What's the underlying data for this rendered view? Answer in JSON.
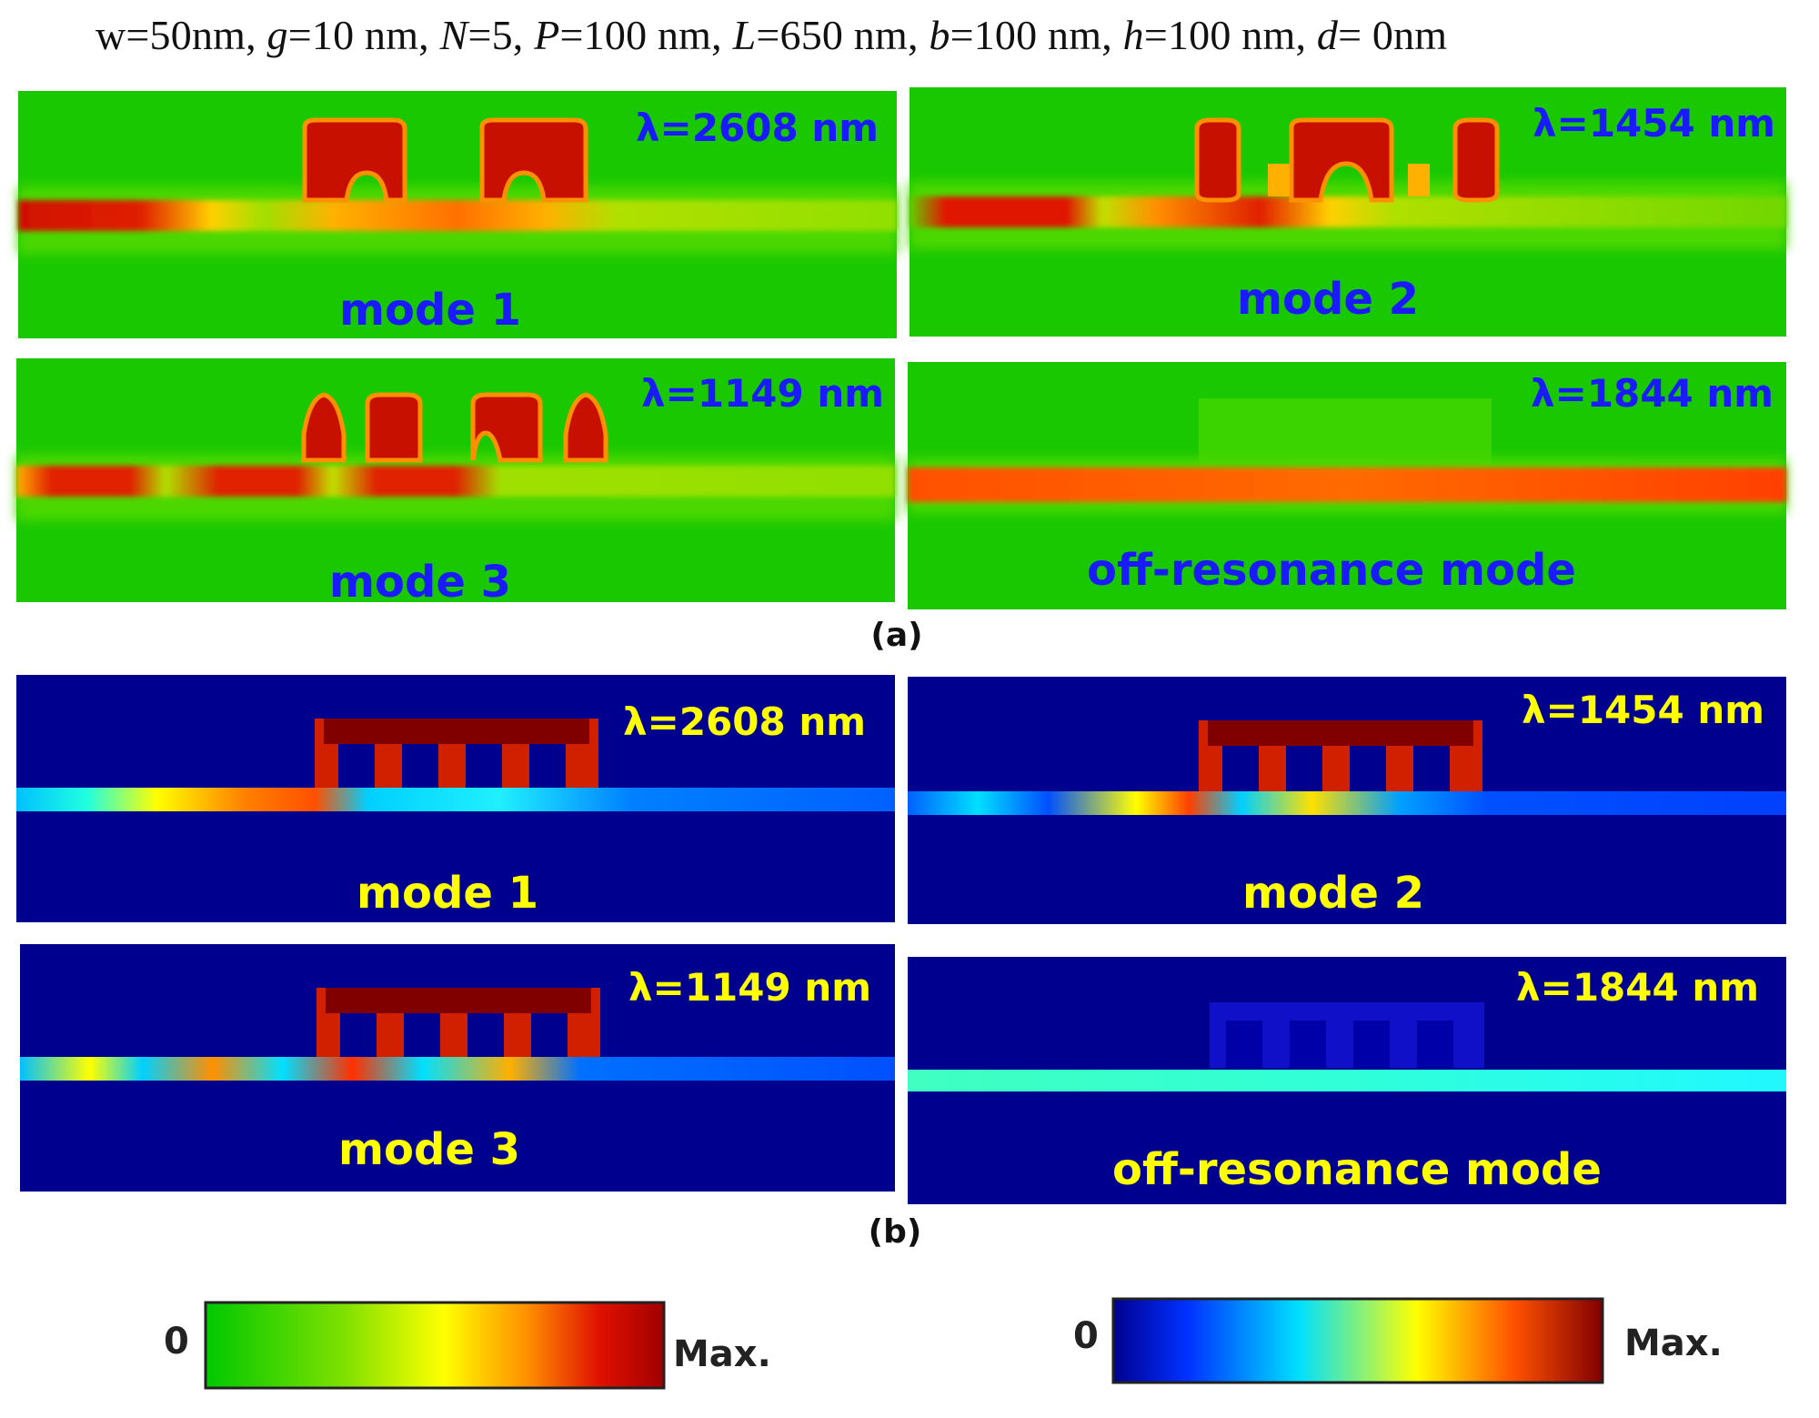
{
  "header": {
    "parts": [
      {
        "t": "w=50nm, ",
        "i": false
      },
      {
        "t": "g",
        "i": true
      },
      {
        "t": "=10 nm, ",
        "i": false
      },
      {
        "t": "N",
        "i": true
      },
      {
        "t": "=5, ",
        "i": false
      },
      {
        "t": "P",
        "i": true
      },
      {
        "t": "=100 nm, ",
        "i": false
      },
      {
        "t": "L",
        "i": true
      },
      {
        "t": "=650 nm, ",
        "i": false
      },
      {
        "t": "b",
        "i": true
      },
      {
        "t": "=100 nm, ",
        "i": false
      },
      {
        "t": "h",
        "i": true
      },
      {
        "t": "=100 nm, ",
        "i": false
      },
      {
        "t": "d",
        "i": true
      },
      {
        "t": "= 0nm",
        "i": false
      }
    ]
  },
  "part_labels": {
    "a": "(a)",
    "b": "(b)"
  },
  "panels_a": [
    {
      "wavelength": "λ=2608 nm",
      "mode": "mode 1"
    },
    {
      "wavelength": "λ=1454 nm",
      "mode": "mode 2"
    },
    {
      "wavelength": "λ=1149 nm",
      "mode": "mode 3"
    },
    {
      "wavelength": "λ=1844 nm",
      "mode": "off-resonance mode"
    }
  ],
  "panels_b": [
    {
      "wavelength": "λ=2608 nm",
      "mode": "mode 1"
    },
    {
      "wavelength": "λ=1454 nm",
      "mode": "mode 2"
    },
    {
      "wavelength": "λ=1149 nm",
      "mode": "mode 3"
    },
    {
      "wavelength": "λ=1844 nm",
      "mode": "off-resonance mode"
    }
  ],
  "colorbars": {
    "a": {
      "min_label": "0",
      "max_label": "Max."
    },
    "b": {
      "min_label": "0",
      "max_label": "Max."
    }
  },
  "colors": {
    "green_map": [
      "#00c800",
      "#7ee000",
      "#ffff00",
      "#ff9000",
      "#e01000",
      "#a00000"
    ],
    "jet_map": [
      "#00008f",
      "#0030ff",
      "#00e0ff",
      "#ffff00",
      "#ff5000",
      "#800000"
    ],
    "label_a": "#1a1aff",
    "label_b": "#ffff00"
  }
}
